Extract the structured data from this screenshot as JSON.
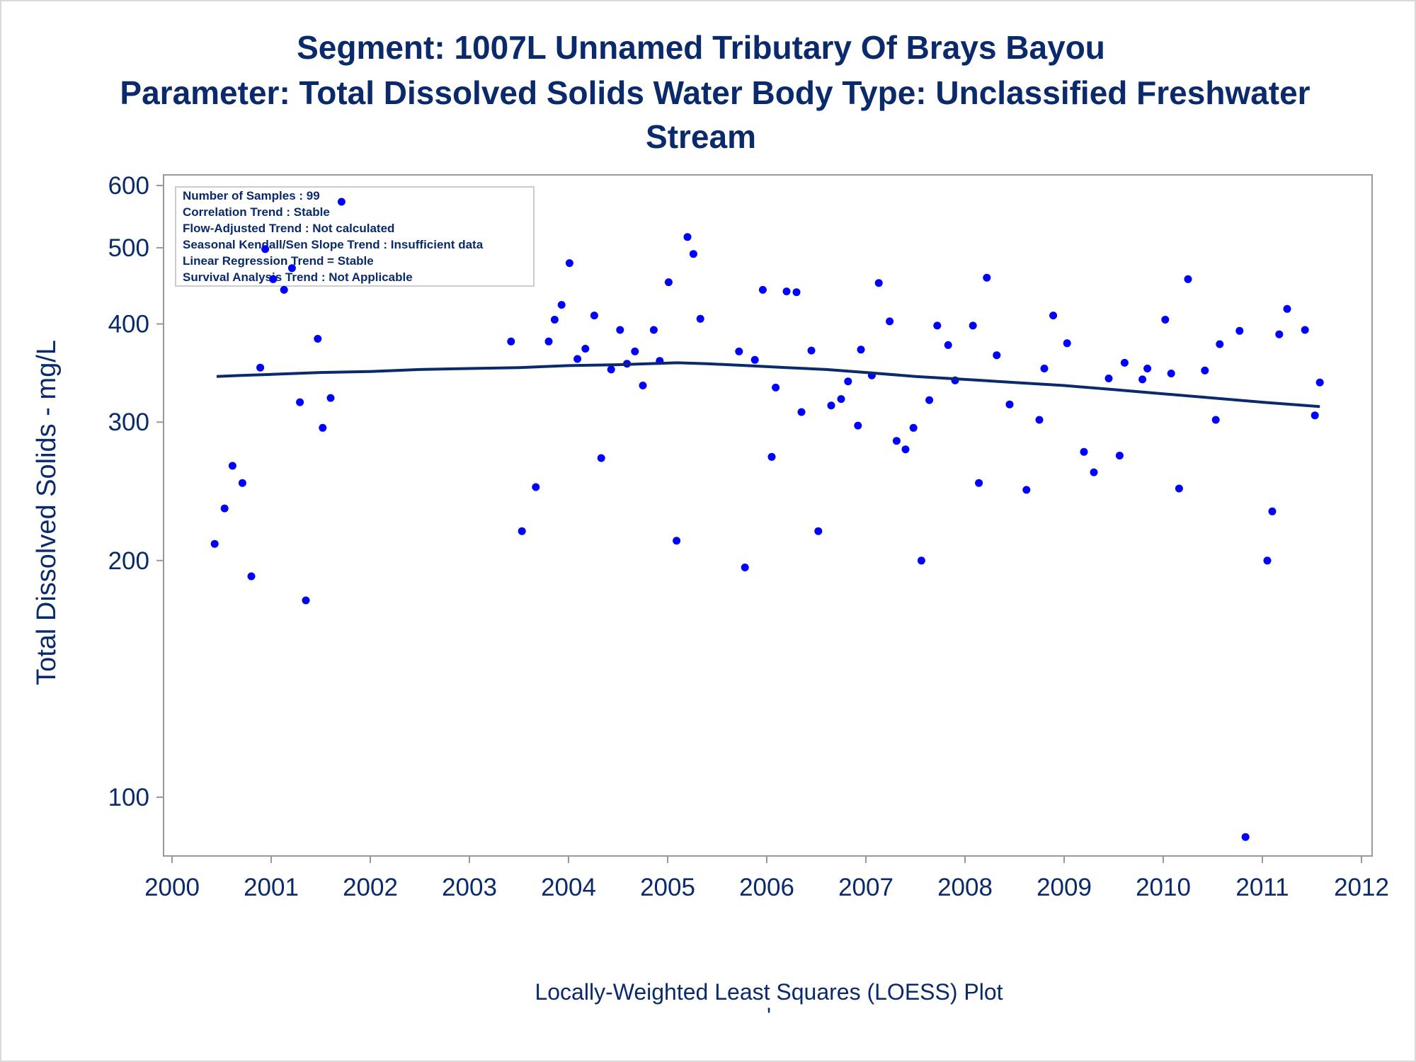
{
  "title_lines": [
    "Segment: 1007L  Unnamed Tributary Of Brays Bayou",
    "Parameter: Total Dissolved Solids   Water Body Type: Unclassified Freshwater",
    "Stream"
  ],
  "stats_box": [
    "Number of Samples : 99",
    "Correlation Trend : Stable",
    "Flow-Adjusted Trend : Not calculated",
    "Seasonal Kendall/Sen Slope Trend : Insufficient data",
    "Linear Regression Trend = Stable",
    "Survival Analysis Trend : Not Applicable"
  ],
  "footnote": "Locally-Weighted Least Squares (LOESS) Plot",
  "footnote_mark": "'",
  "colors": {
    "points": "#0000ff",
    "line": "#0a2a6b",
    "text": "#0a2a6b",
    "axis": "#999999"
  },
  "chart_data": {
    "type": "scatter",
    "ylabel": "Total Dissolved Solids - mg/L",
    "xlabel": "",
    "y_scale": "log",
    "xlim": [
      2000,
      2012
    ],
    "ylim": [
      87,
      620
    ],
    "x_ticks": [
      2000,
      2001,
      2002,
      2003,
      2004,
      2005,
      2006,
      2007,
      2008,
      2009,
      2010,
      2011,
      2012
    ],
    "y_ticks": [
      100,
      200,
      300,
      400,
      500,
      600
    ],
    "grid": false,
    "legend": "none",
    "series": [
      {
        "kind": "points",
        "points": [
          [
            2000.43,
            210
          ],
          [
            2000.53,
            233
          ],
          [
            2000.61,
            264
          ],
          [
            2000.71,
            251
          ],
          [
            2000.8,
            191
          ],
          [
            2000.89,
            352
          ],
          [
            2000.94,
            498
          ],
          [
            2001.02,
            456
          ],
          [
            2001.13,
            442
          ],
          [
            2001.21,
            471
          ],
          [
            2001.29,
            318
          ],
          [
            2001.35,
            178
          ],
          [
            2001.47,
            383
          ],
          [
            2001.52,
            295
          ],
          [
            2001.6,
            322
          ],
          [
            2001.71,
            572
          ],
          [
            2003.42,
            380
          ],
          [
            2003.53,
            218
          ],
          [
            2003.67,
            248
          ],
          [
            2003.8,
            380
          ],
          [
            2003.86,
            405
          ],
          [
            2003.93,
            423
          ],
          [
            2004.01,
            478
          ],
          [
            2004.09,
            361
          ],
          [
            2004.17,
            372
          ],
          [
            2004.26,
            410
          ],
          [
            2004.33,
            270
          ],
          [
            2004.43,
            350
          ],
          [
            2004.52,
            393
          ],
          [
            2004.59,
            356
          ],
          [
            2004.67,
            369
          ],
          [
            2004.75,
            334
          ],
          [
            2004.86,
            393
          ],
          [
            2004.92,
            359
          ],
          [
            2005.01,
            452
          ],
          [
            2005.09,
            212
          ],
          [
            2005.2,
            516
          ],
          [
            2005.26,
            491
          ],
          [
            2005.33,
            406
          ],
          [
            2005.72,
            369
          ],
          [
            2005.78,
            196
          ],
          [
            2005.88,
            360
          ],
          [
            2005.96,
            442
          ],
          [
            2006.05,
            271
          ],
          [
            2006.09,
            332
          ],
          [
            2006.2,
            440
          ],
          [
            2006.3,
            439
          ],
          [
            2006.35,
            309
          ],
          [
            2006.45,
            370
          ],
          [
            2006.52,
            218
          ],
          [
            2006.65,
            315
          ],
          [
            2006.75,
            321
          ],
          [
            2006.82,
            338
          ],
          [
            2006.92,
            297
          ],
          [
            2006.95,
            371
          ],
          [
            2007.06,
            344
          ],
          [
            2007.13,
            451
          ],
          [
            2007.24,
            403
          ],
          [
            2007.31,
            284
          ],
          [
            2007.4,
            277
          ],
          [
            2007.48,
            295
          ],
          [
            2007.56,
            200
          ],
          [
            2007.64,
            320
          ],
          [
            2007.72,
            398
          ],
          [
            2007.83,
            376
          ],
          [
            2007.9,
            339
          ],
          [
            2008.08,
            398
          ],
          [
            2008.14,
            251
          ],
          [
            2008.22,
            458
          ],
          [
            2008.32,
            365
          ],
          [
            2008.45,
            316
          ],
          [
            2008.62,
            246
          ],
          [
            2008.75,
            302
          ],
          [
            2008.8,
            351
          ],
          [
            2008.89,
            410
          ],
          [
            2009.03,
            378
          ],
          [
            2009.2,
            275
          ],
          [
            2009.3,
            259
          ],
          [
            2009.45,
            341
          ],
          [
            2009.56,
            272
          ],
          [
            2009.61,
            357
          ],
          [
            2009.79,
            340
          ],
          [
            2009.84,
            351
          ],
          [
            2010.02,
            405
          ],
          [
            2010.08,
            346
          ],
          [
            2010.16,
            247
          ],
          [
            2010.25,
            456
          ],
          [
            2010.42,
            349
          ],
          [
            2010.53,
            302
          ],
          [
            2010.57,
            377
          ],
          [
            2010.77,
            392
          ],
          [
            2010.83,
            89
          ],
          [
            2011.05,
            200
          ],
          [
            2011.1,
            231
          ],
          [
            2011.17,
            388
          ],
          [
            2011.25,
            418
          ],
          [
            2011.43,
            393
          ],
          [
            2011.53,
            306
          ],
          [
            2011.58,
            337
          ]
        ]
      },
      {
        "kind": "loess",
        "points": [
          [
            2000.45,
            343
          ],
          [
            2000.7,
            344
          ],
          [
            2001.0,
            345
          ],
          [
            2001.5,
            347
          ],
          [
            2002.0,
            348
          ],
          [
            2002.5,
            350
          ],
          [
            2003.0,
            351
          ],
          [
            2003.5,
            352
          ],
          [
            2004.0,
            354
          ],
          [
            2004.5,
            355
          ],
          [
            2004.8,
            356
          ],
          [
            2005.1,
            357
          ],
          [
            2005.4,
            356
          ],
          [
            2005.8,
            354
          ],
          [
            2006.2,
            352
          ],
          [
            2006.6,
            350
          ],
          [
            2007.0,
            347
          ],
          [
            2007.5,
            343
          ],
          [
            2008.0,
            340
          ],
          [
            2008.5,
            337
          ],
          [
            2009.0,
            334
          ],
          [
            2009.5,
            330
          ],
          [
            2010.0,
            326
          ],
          [
            2010.5,
            322
          ],
          [
            2011.0,
            318
          ],
          [
            2011.58,
            314
          ]
        ]
      }
    ]
  }
}
